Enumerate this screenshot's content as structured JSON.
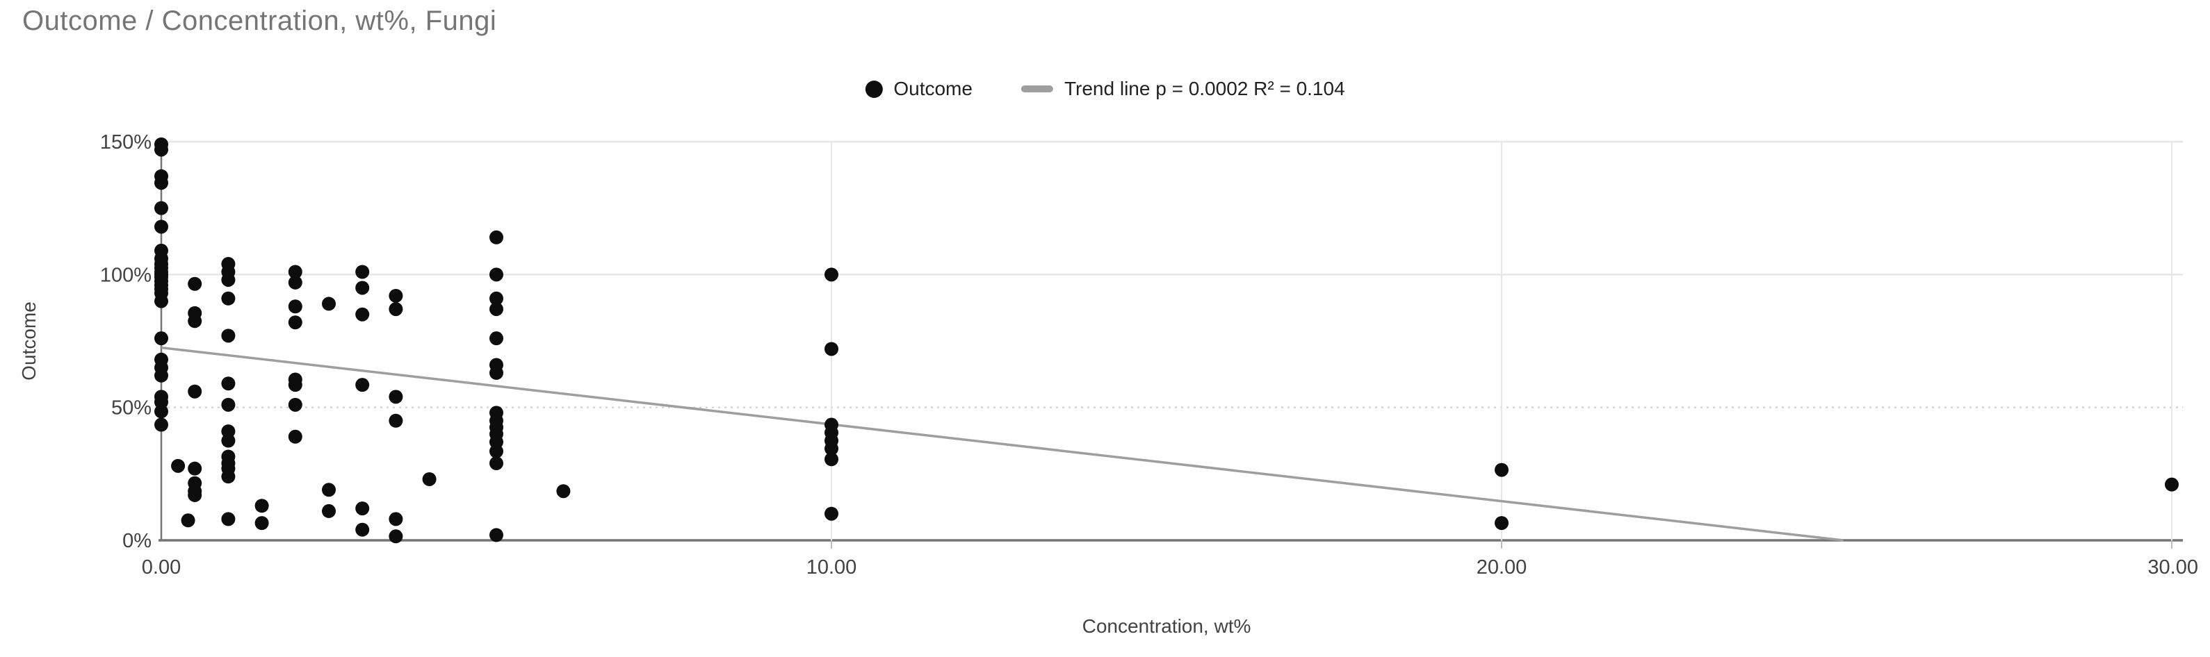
{
  "title": "Outcome / Concentration, wt%, Fungi",
  "legend": {
    "series_label": "Outcome",
    "trend_label": "Trend line p = 0.0002 R² = 0.104"
  },
  "colors": {
    "title_text": "#757575",
    "axis_text": "#424242",
    "legend_text": "#212121",
    "point": "#0d0d0d",
    "trend_line": "#9e9e9e",
    "gridline": "#e6e6e4",
    "gridline_dotted": "#cccccc",
    "axis_line": "#757575"
  },
  "chart_data": {
    "type": "scatter",
    "title": "Outcome / Concentration, wt%, Fungi",
    "xlabel": "Concentration, wt%",
    "ylabel": "Outcome",
    "xlim": [
      0,
      30
    ],
    "ylim": [
      0,
      150
    ],
    "grid": true,
    "legend_position": "top-center",
    "x_ticks": [
      {
        "value": 0,
        "label": "0.00"
      },
      {
        "value": 10,
        "label": "10.00"
      },
      {
        "value": 20,
        "label": "20.00"
      },
      {
        "value": 30,
        "label": "30.00"
      }
    ],
    "y_ticks": [
      {
        "value": 0,
        "label": "0%"
      },
      {
        "value": 50,
        "label": "50%"
      },
      {
        "value": 100,
        "label": "100%"
      },
      {
        "value": 150,
        "label": "150%"
      }
    ],
    "series": [
      {
        "name": "Outcome",
        "color": "#0d0d0d",
        "points": [
          [
            0,
            149
          ],
          [
            0,
            147
          ],
          [
            0,
            137
          ],
          [
            0,
            134.5
          ],
          [
            0,
            125
          ],
          [
            0,
            118
          ],
          [
            0,
            109
          ],
          [
            0,
            106
          ],
          [
            0,
            104
          ],
          [
            0,
            102.5
          ],
          [
            0,
            101
          ],
          [
            0,
            100
          ],
          [
            0,
            99
          ],
          [
            0,
            97.5
          ],
          [
            0,
            96
          ],
          [
            0,
            94.5
          ],
          [
            0,
            93
          ],
          [
            0,
            90
          ],
          [
            0,
            76
          ],
          [
            0,
            68
          ],
          [
            0,
            65
          ],
          [
            0,
            62
          ],
          [
            0,
            54
          ],
          [
            0,
            52
          ],
          [
            0,
            48.5
          ],
          [
            0,
            43.5
          ],
          [
            0.25,
            28
          ],
          [
            0.4,
            7.5
          ],
          [
            0.5,
            96.5
          ],
          [
            0.5,
            85.5
          ],
          [
            0.5,
            82.5
          ],
          [
            0.5,
            56
          ],
          [
            0.5,
            27
          ],
          [
            0.5,
            21.5
          ],
          [
            0.5,
            18.5
          ],
          [
            0.5,
            17
          ],
          [
            1,
            104
          ],
          [
            1,
            101
          ],
          [
            1,
            98
          ],
          [
            1,
            91
          ],
          [
            1,
            77
          ],
          [
            1,
            59
          ],
          [
            1,
            51
          ],
          [
            1,
            41
          ],
          [
            1,
            37.5
          ],
          [
            1,
            31.5
          ],
          [
            1,
            29
          ],
          [
            1,
            27
          ],
          [
            1,
            24
          ],
          [
            1,
            8
          ],
          [
            1.5,
            13
          ],
          [
            1.5,
            6.5
          ],
          [
            2,
            101
          ],
          [
            2,
            97
          ],
          [
            2,
            88
          ],
          [
            2,
            82
          ],
          [
            2,
            60.5
          ],
          [
            2,
            58.5
          ],
          [
            2,
            51
          ],
          [
            2,
            39
          ],
          [
            2.5,
            89
          ],
          [
            2.5,
            19
          ],
          [
            2.5,
            11
          ],
          [
            3,
            101
          ],
          [
            3,
            95
          ],
          [
            3,
            85
          ],
          [
            3,
            58.5
          ],
          [
            3,
            12
          ],
          [
            3,
            4
          ],
          [
            3.5,
            92
          ],
          [
            3.5,
            87
          ],
          [
            3.5,
            54
          ],
          [
            3.5,
            45
          ],
          [
            3.5,
            8
          ],
          [
            3.5,
            1.5
          ],
          [
            4,
            23
          ],
          [
            5,
            114
          ],
          [
            5,
            100
          ],
          [
            5,
            91
          ],
          [
            5,
            87
          ],
          [
            5,
            76
          ],
          [
            5,
            66
          ],
          [
            5,
            63
          ],
          [
            5,
            48
          ],
          [
            5,
            45
          ],
          [
            5,
            42.5
          ],
          [
            5,
            40
          ],
          [
            5,
            37
          ],
          [
            5,
            33.5
          ],
          [
            5,
            29
          ],
          [
            5,
            2
          ],
          [
            6,
            18.5
          ],
          [
            10,
            100
          ],
          [
            10,
            72
          ],
          [
            10,
            43.5
          ],
          [
            10,
            40.5
          ],
          [
            10,
            37.5
          ],
          [
            10,
            34.5
          ],
          [
            10,
            30.5
          ],
          [
            10,
            10
          ],
          [
            20,
            26.5
          ],
          [
            20,
            6.5
          ],
          [
            30,
            21
          ]
        ]
      }
    ],
    "trend_line": {
      "label": "Trend line",
      "p_value": "0.0002",
      "r_squared": "0.104",
      "x1": 0,
      "y1": 72.5,
      "x2": 25.1,
      "y2": 0,
      "color": "#9e9e9e"
    }
  }
}
